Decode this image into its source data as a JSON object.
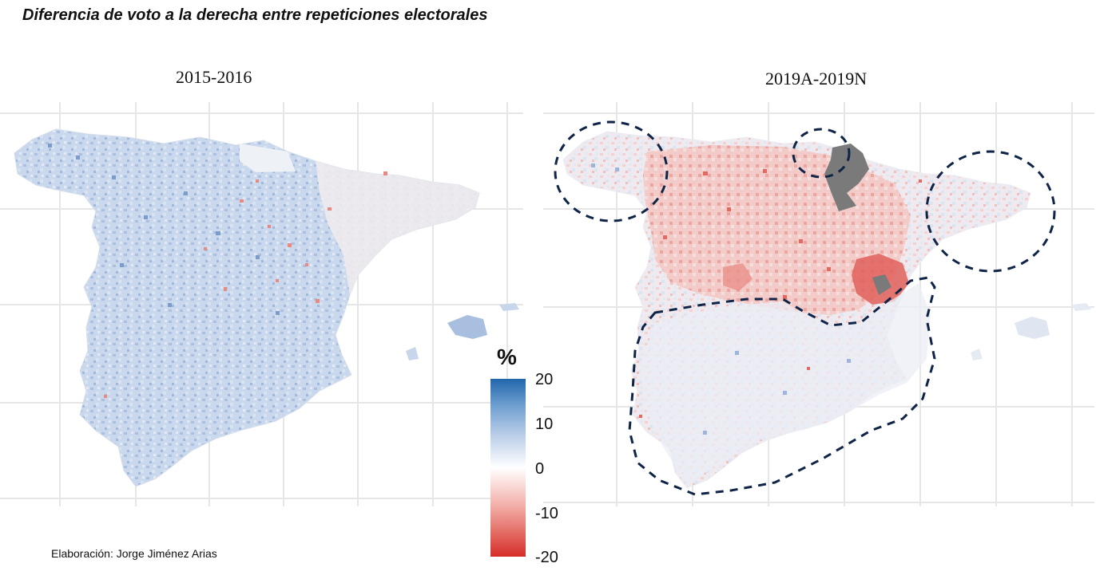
{
  "title": "Diferencia de voto a la derecha entre repeticiones electorales",
  "panels": {
    "left": {
      "title": "2015-2016",
      "description_tone": "mostly blue (right-wing vote increased)"
    },
    "right": {
      "title": "2019A-2019N",
      "description_tone": "mostly red in north-centre, highlighted regions circled"
    }
  },
  "legend": {
    "title": "%",
    "ticks": [
      "20",
      "10",
      "0",
      "-10",
      "-20"
    ],
    "colors": {
      "high": "#2166ac",
      "mid": "#ffffff",
      "low": "#d62c28",
      "missing": "#7a7a7a",
      "outline": "#0f2447"
    }
  },
  "credit": "Elaboración: Jorge Jiménez Arias"
}
